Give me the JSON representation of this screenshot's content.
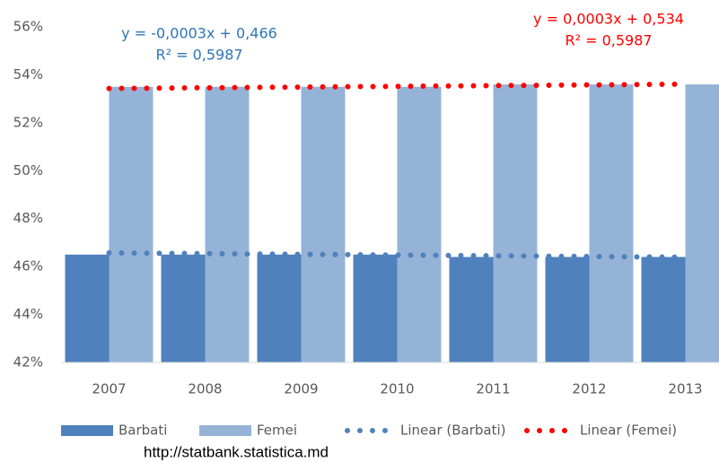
{
  "chart_data": {
    "type": "bar",
    "categories": [
      "2007",
      "2008",
      "2009",
      "2010",
      "2011",
      "2012",
      "2013"
    ],
    "series": [
      {
        "name": "Barbati",
        "type": "bar",
        "color": "#4f81bd",
        "values": [
          46.5,
          46.5,
          46.5,
          46.5,
          46.4,
          46.4,
          46.4
        ]
      },
      {
        "name": "Femei",
        "type": "bar",
        "color": "#95b3d7",
        "values": [
          53.5,
          53.5,
          53.5,
          53.5,
          53.6,
          53.6,
          53.6
        ]
      },
      {
        "name": "Linear (Barbati)",
        "type": "line",
        "color": "#4f81bd",
        "values": [
          46.57,
          46.54,
          46.51,
          46.48,
          46.45,
          46.42,
          46.39
        ]
      },
      {
        "name": "Linear (Femei)",
        "type": "line",
        "color": "#ff0000",
        "values": [
          53.43,
          53.46,
          53.49,
          53.52,
          53.55,
          53.58,
          53.61
        ]
      }
    ],
    "annotations": [
      {
        "lines": [
          "y = -0,0003x + 0,466",
          "R² = 0,5987"
        ],
        "color": "#2e75b6"
      },
      {
        "lines": [
          "y = 0,0003x + 0,534",
          "R² = 0,5987"
        ],
        "color": "#ff0000"
      }
    ],
    "ylim": [
      42,
      56
    ],
    "yticks": [
      {
        "value": 42,
        "label": "42%"
      },
      {
        "value": 44,
        "label": "44%"
      },
      {
        "value": 46,
        "label": "46%"
      },
      {
        "value": 48,
        "label": "48%"
      },
      {
        "value": 50,
        "label": "50%"
      },
      {
        "value": 52,
        "label": "52%"
      },
      {
        "value": 54,
        "label": "54%"
      },
      {
        "value": 56,
        "label": "56%"
      }
    ],
    "grid": false,
    "legend": "bottom",
    "source": "http://statbank.statistica.md"
  }
}
